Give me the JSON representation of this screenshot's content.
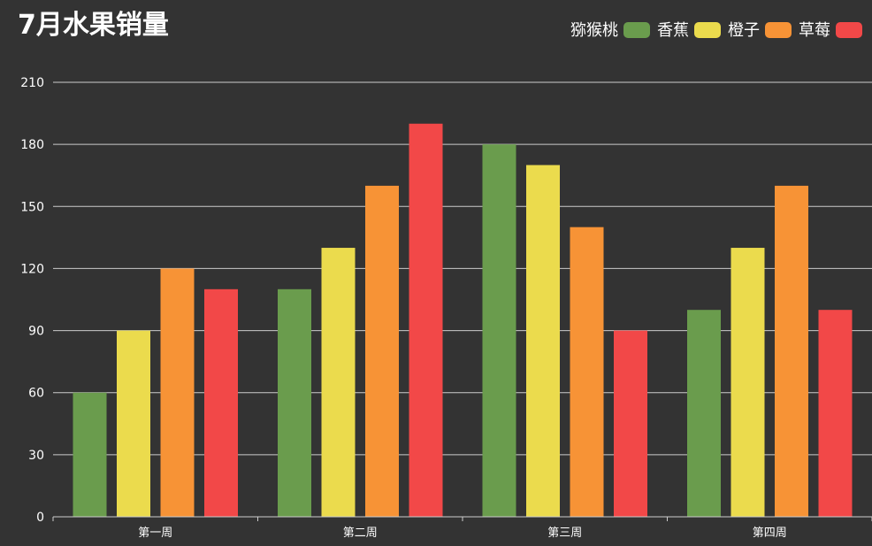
{
  "chart_data": {
    "type": "bar",
    "title": "7月水果销量",
    "xlabel": "",
    "ylabel": "",
    "categories": [
      "第一周",
      "第二周",
      "第三周",
      "第四周"
    ],
    "series": [
      {
        "name": "猕猴桃",
        "values": [
          60,
          110,
          180,
          100
        ],
        "color": "#6a9c4d"
      },
      {
        "name": "香蕉",
        "values": [
          90,
          130,
          170,
          130
        ],
        "color": "#ebdb4d"
      },
      {
        "name": "橙子",
        "values": [
          120,
          160,
          140,
          160
        ],
        "color": "#f79336"
      },
      {
        "name": "草莓",
        "values": [
          110,
          190,
          90,
          100
        ],
        "color": "#f24848"
      }
    ],
    "ylim": [
      0,
      210
    ],
    "yticks": [
      0,
      30,
      60,
      90,
      120,
      150,
      180,
      210
    ],
    "grid": true,
    "legend_position": "top-right",
    "colors": {
      "background": "#333333",
      "text": "#ffffff",
      "grid": "#cccccc",
      "axis": "#cccccc"
    }
  }
}
